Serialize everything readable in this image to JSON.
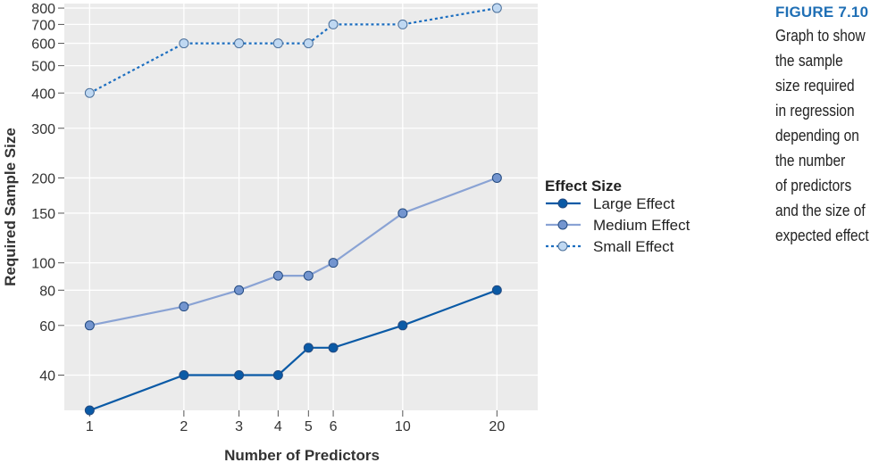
{
  "figure": {
    "label": "FIGURE 7.10",
    "caption_lines": [
      "Graph to show",
      "the sample",
      "size required",
      "in regression",
      "depending on",
      "the number",
      "of predictors",
      "and the size of",
      "expected effect"
    ]
  },
  "chart_data": {
    "type": "line",
    "xlabel": "Number of Predictors",
    "ylabel": "Required Sample Size",
    "x_scale": "log",
    "y_scale": "log",
    "x": [
      1,
      2,
      3,
      4,
      5,
      6,
      10,
      20
    ],
    "x_tick_labels": [
      "1",
      "2",
      "3",
      "4",
      "5",
      "6",
      "10",
      "20"
    ],
    "y_ticks": [
      40,
      60,
      80,
      100,
      150,
      200,
      300,
      400,
      500,
      600,
      700,
      800
    ],
    "y_tick_labels": [
      "40",
      "60",
      "80",
      "100",
      "150",
      "200",
      "300",
      "400",
      "500",
      "600",
      "700",
      "800"
    ],
    "xlim": [
      0.83,
      27
    ],
    "ylim": [
      30,
      830
    ],
    "grid": true,
    "legend": {
      "title": "Effect Size",
      "position": "right"
    },
    "series": [
      {
        "name": "Large Effect",
        "values": [
          30,
          40,
          40,
          40,
          50,
          50,
          60,
          80
        ],
        "color": "#0a5aa6",
        "style": "solid",
        "marker_fill": "#0a5aa6"
      },
      {
        "name": "Medium Effect",
        "values": [
          60,
          70,
          80,
          90,
          90,
          100,
          150,
          200
        ],
        "color": "#8aa3d4",
        "style": "solid",
        "marker_fill": "#7395cf"
      },
      {
        "name": "Small Effect",
        "values": [
          400,
          600,
          600,
          600,
          600,
          700,
          700,
          800
        ],
        "color": "#1c6ec0",
        "style": "dotted",
        "marker_fill": "#bfd8f2"
      }
    ]
  },
  "colors": {
    "plot_background": "#ebebeb",
    "grid": "#ffffff",
    "axis_text": "#333333",
    "caption_accent": "#1f6fb5"
  }
}
